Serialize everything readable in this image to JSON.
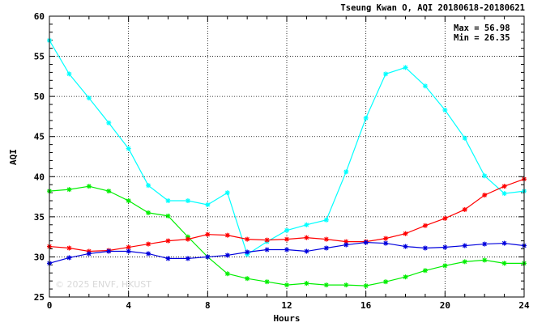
{
  "chart_data": {
    "type": "line",
    "title": "Tseung Kwan O, AQI 20180618-20180621",
    "xlabel": "Hours",
    "ylabel": "AQI",
    "xlim": [
      0,
      24
    ],
    "ylim": [
      25,
      60
    ],
    "xticks": [
      0,
      4,
      8,
      12,
      16,
      20,
      24
    ],
    "yticks": [
      25,
      30,
      35,
      40,
      45,
      50,
      55,
      60
    ],
    "x_minor_step": 1,
    "y_minor_step": 1,
    "grid": true,
    "grid_style": "dotted",
    "stats": {
      "max_label": "Max = 56.98",
      "min_label": "Min = 26.35"
    },
    "watermark": "© 2025  ENVF, HKUST",
    "x": [
      0,
      1,
      2,
      3,
      4,
      5,
      6,
      7,
      8,
      9,
      10,
      11,
      12,
      13,
      14,
      15,
      16,
      17,
      18,
      19,
      20,
      21,
      22,
      23,
      24
    ],
    "series": [
      {
        "color": "#00ffff",
        "values": [
          56.98,
          52.8,
          49.8,
          46.7,
          43.5,
          38.9,
          37.0,
          37.0,
          36.5,
          38.0,
          30.3,
          31.9,
          33.3,
          34.0,
          34.6,
          40.6,
          47.3,
          52.8,
          53.6,
          51.3,
          48.3,
          44.8,
          40.1,
          37.9,
          38.2
        ]
      },
      {
        "color": "#00ee00",
        "values": [
          38.2,
          38.4,
          38.8,
          38.2,
          37.0,
          35.5,
          35.1,
          32.5,
          30.0,
          27.9,
          27.3,
          26.9,
          26.5,
          26.7,
          26.5,
          26.5,
          26.4,
          26.9,
          27.5,
          28.3,
          28.9,
          29.4,
          29.6,
          29.2,
          29.2
        ]
      },
      {
        "color": "#ff0000",
        "values": [
          31.3,
          31.1,
          30.7,
          30.8,
          31.2,
          31.6,
          32.0,
          32.2,
          32.8,
          32.7,
          32.2,
          32.1,
          32.2,
          32.4,
          32.2,
          31.9,
          31.9,
          32.3,
          32.9,
          33.9,
          34.8,
          35.9,
          37.7,
          38.8,
          39.7
        ]
      },
      {
        "color": "#0000dd",
        "values": [
          29.2,
          29.9,
          30.4,
          30.7,
          30.7,
          30.4,
          29.8,
          29.8,
          30.0,
          30.2,
          30.6,
          30.9,
          30.9,
          30.7,
          31.1,
          31.5,
          31.8,
          31.7,
          31.3,
          31.1,
          31.2,
          31.4,
          31.6,
          31.7,
          31.4
        ]
      }
    ]
  }
}
